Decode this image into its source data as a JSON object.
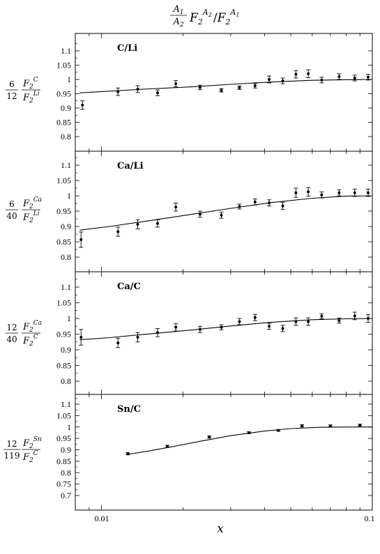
{
  "figure": {
    "title": {
      "frac_num": "A",
      "frac_num_sub": "1",
      "frac_den": "A",
      "frac_den_sub": "2",
      "F1": "F",
      "F1_sub": "2",
      "F1_sup": "A",
      "F1_sup_sub": "2",
      "slash": "/",
      "F2": "F",
      "F2_sub": "2",
      "F2_sup": "A",
      "F2_sup_sub": "1"
    },
    "xlabel": "x",
    "x_tick_labels": [
      "0.01",
      "0.1"
    ],
    "ylabels": [
      {
        "num": "6",
        "den": "12",
        "top_letter": "F",
        "top_sub": "2",
        "top_sup": "C",
        "bot_letter": "F",
        "bot_sub": "2",
        "bot_sup": "Li"
      },
      {
        "num": "6",
        "den": "40",
        "top_letter": "F",
        "top_sub": "2",
        "top_sup": "Ca",
        "bot_letter": "F",
        "bot_sub": "2",
        "bot_sup": "Li"
      },
      {
        "num": "12",
        "den": "40",
        "top_letter": "F",
        "top_sub": "2",
        "top_sup": "Ca",
        "bot_letter": "F",
        "bot_sub": "2",
        "bot_sup": "C"
      },
      {
        "num": "12",
        "den": "119",
        "top_letter": "F",
        "top_sub": "2",
        "top_sup": "Sn",
        "bot_letter": "F",
        "bot_sub": "2",
        "bot_sup": "C"
      }
    ]
  },
  "chart_data": [
    {
      "type": "scatter",
      "title": "C/Li",
      "x_scale": "log",
      "xlim": [
        0.008,
        0.1
      ],
      "ylim": [
        0.75,
        1.15
      ],
      "y_ticks": [
        "0.8",
        "0.85",
        "0.9",
        "0.95",
        "1",
        "1.05",
        "1.1"
      ],
      "points": [
        {
          "x": 0.0085,
          "y": 0.91,
          "err": 0.015
        },
        {
          "x": 0.0115,
          "y": 0.957,
          "err": 0.013
        },
        {
          "x": 0.0136,
          "y": 0.966,
          "err": 0.012
        },
        {
          "x": 0.0161,
          "y": 0.953,
          "err": 0.01
        },
        {
          "x": 0.0188,
          "y": 0.985,
          "err": 0.011
        },
        {
          "x": 0.0231,
          "y": 0.972,
          "err": 0.008
        },
        {
          "x": 0.0277,
          "y": 0.962,
          "err": 0.006
        },
        {
          "x": 0.0323,
          "y": 0.971,
          "err": 0.006
        },
        {
          "x": 0.0369,
          "y": 0.978,
          "err": 0.008
        },
        {
          "x": 0.0416,
          "y": 1.0,
          "err": 0.012
        },
        {
          "x": 0.0467,
          "y": 0.995,
          "err": 0.01
        },
        {
          "x": 0.0522,
          "y": 1.018,
          "err": 0.013
        },
        {
          "x": 0.058,
          "y": 1.02,
          "err": 0.014
        },
        {
          "x": 0.065,
          "y": 0.998,
          "err": 0.01
        },
        {
          "x": 0.0754,
          "y": 1.01,
          "err": 0.01
        },
        {
          "x": 0.0861,
          "y": 1.005,
          "err": 0.01
        },
        {
          "x": 0.0965,
          "y": 1.008,
          "err": 0.01
        }
      ],
      "fit_line": [
        {
          "x": 0.0083,
          "y": 0.953
        },
        {
          "x": 0.0107,
          "y": 0.959
        },
        {
          "x": 0.0151,
          "y": 0.967
        },
        {
          "x": 0.0213,
          "y": 0.974
        },
        {
          "x": 0.03,
          "y": 0.983
        },
        {
          "x": 0.0424,
          "y": 0.991
        },
        {
          "x": 0.06,
          "y": 0.997
        },
        {
          "x": 0.08,
          "y": 0.999
        },
        {
          "x": 0.1,
          "y": 1.0
        }
      ]
    },
    {
      "type": "scatter",
      "title": "Ca/Li",
      "x_scale": "log",
      "xlim": [
        0.008,
        0.1
      ],
      "ylim": [
        0.75,
        1.15
      ],
      "y_ticks": [
        "0.8",
        "0.85",
        "0.9",
        "0.95",
        "1",
        "1.05",
        "1.1"
      ],
      "points": [
        {
          "x": 0.0084,
          "y": 0.857,
          "err": 0.025
        },
        {
          "x": 0.0115,
          "y": 0.883,
          "err": 0.015
        },
        {
          "x": 0.0136,
          "y": 0.907,
          "err": 0.015
        },
        {
          "x": 0.0161,
          "y": 0.91,
          "err": 0.012
        },
        {
          "x": 0.0188,
          "y": 0.963,
          "err": 0.013
        },
        {
          "x": 0.0231,
          "y": 0.94,
          "err": 0.01
        },
        {
          "x": 0.0277,
          "y": 0.937,
          "err": 0.01
        },
        {
          "x": 0.0323,
          "y": 0.965,
          "err": 0.008
        },
        {
          "x": 0.0369,
          "y": 0.98,
          "err": 0.01
        },
        {
          "x": 0.0416,
          "y": 0.977,
          "err": 0.01
        },
        {
          "x": 0.0467,
          "y": 0.967,
          "err": 0.012
        },
        {
          "x": 0.0522,
          "y": 1.01,
          "err": 0.015
        },
        {
          "x": 0.058,
          "y": 1.013,
          "err": 0.014
        },
        {
          "x": 0.065,
          "y": 1.003,
          "err": 0.01
        },
        {
          "x": 0.0754,
          "y": 1.01,
          "err": 0.01
        },
        {
          "x": 0.0861,
          "y": 1.01,
          "err": 0.012
        },
        {
          "x": 0.0965,
          "y": 1.01,
          "err": 0.012
        }
      ],
      "fit_line": [
        {
          "x": 0.0083,
          "y": 0.888
        },
        {
          "x": 0.0107,
          "y": 0.9
        },
        {
          "x": 0.0151,
          "y": 0.919
        },
        {
          "x": 0.0213,
          "y": 0.939
        },
        {
          "x": 0.03,
          "y": 0.959
        },
        {
          "x": 0.0424,
          "y": 0.978
        },
        {
          "x": 0.06,
          "y": 0.992
        },
        {
          "x": 0.08,
          "y": 0.999
        },
        {
          "x": 0.1,
          "y": 1.0
        }
      ]
    },
    {
      "type": "scatter",
      "title": "Ca/C",
      "x_scale": "log",
      "xlim": [
        0.008,
        0.1
      ],
      "ylim": [
        0.75,
        1.15
      ],
      "y_ticks": [
        "0.8",
        "0.85",
        "0.9",
        "0.95",
        "1",
        "1.05",
        "1.1"
      ],
      "points": [
        {
          "x": 0.0084,
          "y": 0.94,
          "err": 0.025
        },
        {
          "x": 0.0115,
          "y": 0.922,
          "err": 0.015
        },
        {
          "x": 0.0136,
          "y": 0.94,
          "err": 0.015
        },
        {
          "x": 0.0161,
          "y": 0.955,
          "err": 0.013
        },
        {
          "x": 0.0188,
          "y": 0.972,
          "err": 0.012
        },
        {
          "x": 0.0231,
          "y": 0.965,
          "err": 0.01
        },
        {
          "x": 0.0277,
          "y": 0.972,
          "err": 0.008
        },
        {
          "x": 0.0323,
          "y": 0.99,
          "err": 0.01
        },
        {
          "x": 0.0369,
          "y": 1.003,
          "err": 0.01
        },
        {
          "x": 0.0416,
          "y": 0.975,
          "err": 0.01
        },
        {
          "x": 0.0467,
          "y": 0.968,
          "err": 0.01
        },
        {
          "x": 0.0522,
          "y": 0.99,
          "err": 0.012
        },
        {
          "x": 0.058,
          "y": 0.99,
          "err": 0.012
        },
        {
          "x": 0.065,
          "y": 1.007,
          "err": 0.008
        },
        {
          "x": 0.0754,
          "y": 0.993,
          "err": 0.008
        },
        {
          "x": 0.0861,
          "y": 1.008,
          "err": 0.012
        },
        {
          "x": 0.0965,
          "y": 1.0,
          "err": 0.012
        }
      ],
      "fit_line": [
        {
          "x": 0.0083,
          "y": 0.932
        },
        {
          "x": 0.0107,
          "y": 0.939
        },
        {
          "x": 0.0151,
          "y": 0.951
        },
        {
          "x": 0.0213,
          "y": 0.963
        },
        {
          "x": 0.03,
          "y": 0.976
        },
        {
          "x": 0.0424,
          "y": 0.988
        },
        {
          "x": 0.06,
          "y": 0.996
        },
        {
          "x": 0.08,
          "y": 0.999
        },
        {
          "x": 0.1,
          "y": 1.0
        }
      ]
    },
    {
      "type": "scatter",
      "title": "Sn/C",
      "x_scale": "log",
      "xlim": [
        0.008,
        0.1
      ],
      "ylim": [
        0.65,
        1.15
      ],
      "y_ticks": [
        "0.7",
        "0.75",
        "0.8",
        "0.85",
        "0.9",
        "0.95",
        "1",
        "1.05",
        "1.1"
      ],
      "points": [
        {
          "x": 0.0125,
          "y": 0.883,
          "err": 0.005
        },
        {
          "x": 0.0175,
          "y": 0.915,
          "err": 0.005
        },
        {
          "x": 0.025,
          "y": 0.956,
          "err": 0.005
        },
        {
          "x": 0.035,
          "y": 0.975,
          "err": 0.004
        },
        {
          "x": 0.045,
          "y": 0.985,
          "err": 0.004
        },
        {
          "x": 0.055,
          "y": 1.005,
          "err": 0.005
        },
        {
          "x": 0.07,
          "y": 1.005,
          "err": 0.004
        },
        {
          "x": 0.09,
          "y": 1.008,
          "err": 0.004
        }
      ],
      "fit_line": [
        {
          "x": 0.0125,
          "y": 0.88
        },
        {
          "x": 0.015,
          "y": 0.895
        },
        {
          "x": 0.0185,
          "y": 0.915
        },
        {
          "x": 0.023,
          "y": 0.937
        },
        {
          "x": 0.03,
          "y": 0.962
        },
        {
          "x": 0.04,
          "y": 0.982
        },
        {
          "x": 0.05,
          "y": 0.993
        },
        {
          "x": 0.065,
          "y": 0.999
        },
        {
          "x": 0.08,
          "y": 1.0
        },
        {
          "x": 0.1,
          "y": 1.0
        }
      ]
    }
  ]
}
